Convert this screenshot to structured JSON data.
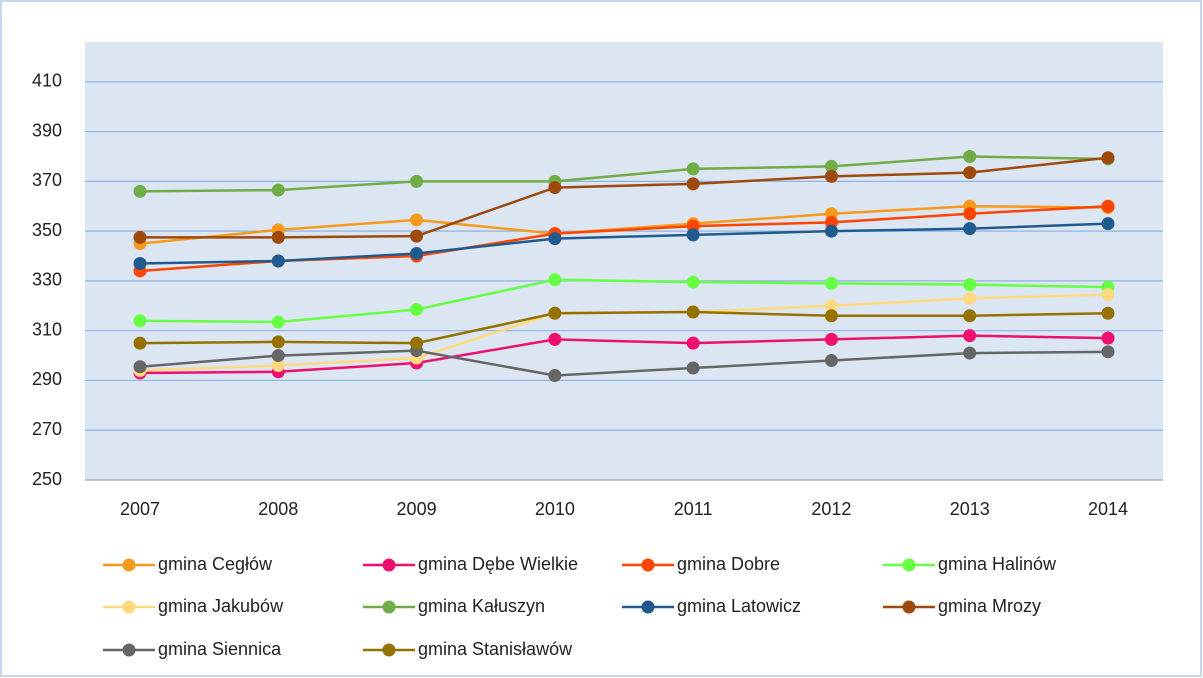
{
  "chart_data": {
    "type": "line",
    "categories": [
      "2007",
      "2008",
      "2009",
      "2010",
      "2011",
      "2012",
      "2013",
      "2014"
    ],
    "ylim": [
      250,
      426
    ],
    "yticks": [
      250,
      270,
      290,
      310,
      330,
      350,
      370,
      390,
      410
    ],
    "grid": true,
    "legend": "bottom",
    "series": [
      {
        "name": "gmina Cegłów",
        "color": "#f79a1b",
        "values": [
          345,
          350.5,
          354.5,
          349,
          353,
          357,
          360,
          359.5
        ]
      },
      {
        "name": "gmina Dębe Wielkie",
        "color": "#ee0f6e",
        "values": [
          293,
          293.5,
          297,
          306.5,
          305,
          306.5,
          308,
          307
        ]
      },
      {
        "name": "gmina Dobre",
        "color": "#ff4500",
        "values": [
          334,
          338,
          340,
          349,
          352,
          353.5,
          357,
          360
        ]
      },
      {
        "name": "gmina Halinów",
        "color": "#66ff44",
        "values": [
          314,
          313.5,
          318.5,
          330.5,
          329.5,
          329,
          328.5,
          327.5
        ]
      },
      {
        "name": "gmina Jakubów",
        "color": "#ffd980",
        "values": [
          294,
          296,
          299,
          317,
          317.5,
          320,
          323,
          324.5
        ]
      },
      {
        "name": "gmina Kałuszyn",
        "color": "#70ad47",
        "values": [
          366,
          366.5,
          370,
          370,
          375,
          376,
          380,
          379
        ]
      },
      {
        "name": "gmina Latowicz",
        "color": "#1f5b8f",
        "values": [
          337,
          338,
          341,
          347,
          348.5,
          350,
          351,
          353
        ]
      },
      {
        "name": "gmina Mrozy",
        "color": "#9e4a0f",
        "values": [
          347.5,
          347.5,
          348,
          367.5,
          369,
          372,
          373.5,
          379.5
        ]
      },
      {
        "name": "gmina Siennica",
        "color": "#666666",
        "values": [
          295.5,
          300,
          302,
          292,
          295,
          298,
          301,
          301.5
        ]
      },
      {
        "name": "gmina Stanisławów",
        "color": "#957100",
        "values": [
          305,
          305.5,
          305,
          317,
          317.5,
          316,
          316,
          317
        ]
      }
    ]
  }
}
